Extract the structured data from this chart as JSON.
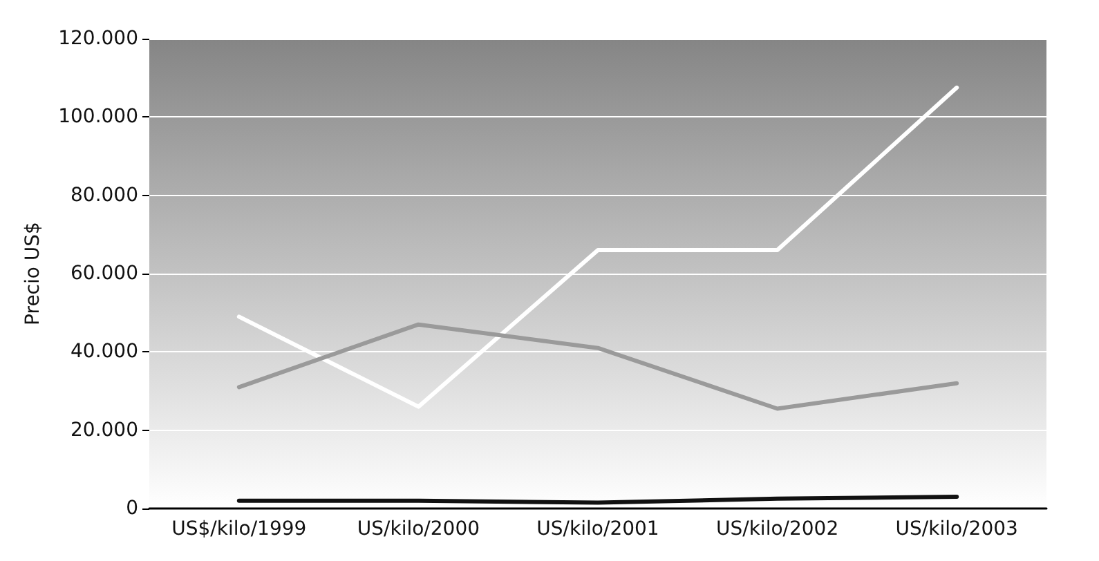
{
  "chart_data": {
    "type": "line",
    "ylabel": "Precio US$",
    "categories": [
      "US$/kilo/1999",
      "US/kilo/2000",
      "US/kilo/2001",
      "US/kilo/2002",
      "US/kilo/2003"
    ],
    "series": [
      {
        "color": "#ffffff",
        "values": [
          49000,
          26000,
          66000,
          66000,
          107500
        ]
      },
      {
        "color": "#9a9a9a",
        "values": [
          31000,
          47000,
          41000,
          25500,
          32000
        ]
      },
      {
        "color": "#111111",
        "values": [
          2000,
          2000,
          1500,
          2500,
          3000
        ]
      }
    ],
    "ylim": [
      0,
      120000
    ],
    "yticks": [
      0,
      {
        "value": 20000,
        "label": "20.000"
      },
      {
        "value": 40000,
        "label": "40.000"
      },
      {
        "value": 60000,
        "label": "60.000"
      },
      {
        "value": 80000,
        "label": "80.000"
      },
      {
        "value": 100000,
        "label": "100.000"
      },
      {
        "value": 120000,
        "label": "120.000"
      }
    ],
    "grid": "y",
    "marker": "none",
    "line_style": "solid"
  }
}
